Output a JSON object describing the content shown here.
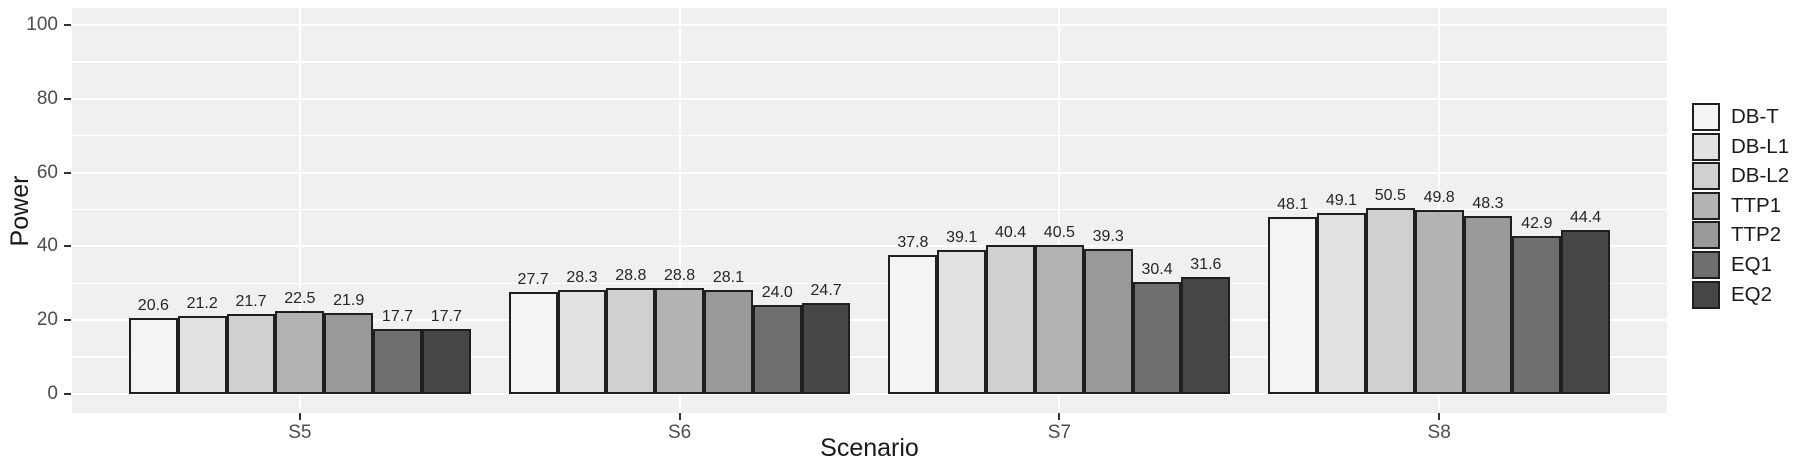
{
  "chart_data": {
    "type": "bar",
    "title": "",
    "xlabel": "Scenario",
    "ylabel": "Power",
    "ylim": [
      0,
      100
    ],
    "y_ticks": [
      0,
      20,
      40,
      60,
      80,
      100
    ],
    "y_minor_gridlines": [
      10,
      30,
      50,
      70,
      90
    ],
    "grid": "white horizontal lines every 10 units (major at 20s), white vertical line at each category center",
    "legend_position": "right",
    "bar_labels": "values shown above each bar, one decimal place",
    "categories": [
      "S5",
      "S6",
      "S7",
      "S8"
    ],
    "series": [
      {
        "name": "DB-T",
        "color": "#F4F4F4",
        "values": [
          20.6,
          27.7,
          37.8,
          48.1
        ]
      },
      {
        "name": "DB-L1",
        "color": "#E2E2E2",
        "values": [
          21.2,
          28.3,
          39.1,
          49.1
        ]
      },
      {
        "name": "DB-L2",
        "color": "#D0D0D0",
        "values": [
          21.7,
          28.8,
          40.4,
          50.5
        ]
      },
      {
        "name": "TTP1",
        "color": "#B3B3B3",
        "values": [
          22.5,
          28.8,
          40.5,
          49.8
        ]
      },
      {
        "name": "TTP2",
        "color": "#999999",
        "values": [
          21.9,
          28.1,
          39.3,
          48.3
        ]
      },
      {
        "name": "EQ1",
        "color": "#6F6F6F",
        "values": [
          17.7,
          24.0,
          30.4,
          42.9
        ]
      },
      {
        "name": "EQ2",
        "color": "#464646",
        "values": [
          17.7,
          24.7,
          31.6,
          44.4
        ]
      }
    ]
  },
  "colors": {
    "page_background": "#FFFFFF",
    "panel_background": "#F0F0F0",
    "gridline": "#FFFFFF",
    "bar_border": "#1F1F1F",
    "axis_text": "#4D4D4D",
    "axis_title": "#1A1A1A",
    "tick_mark": "#333333",
    "value_label": "#262626",
    "legend_text": "#1A1A1A"
  }
}
